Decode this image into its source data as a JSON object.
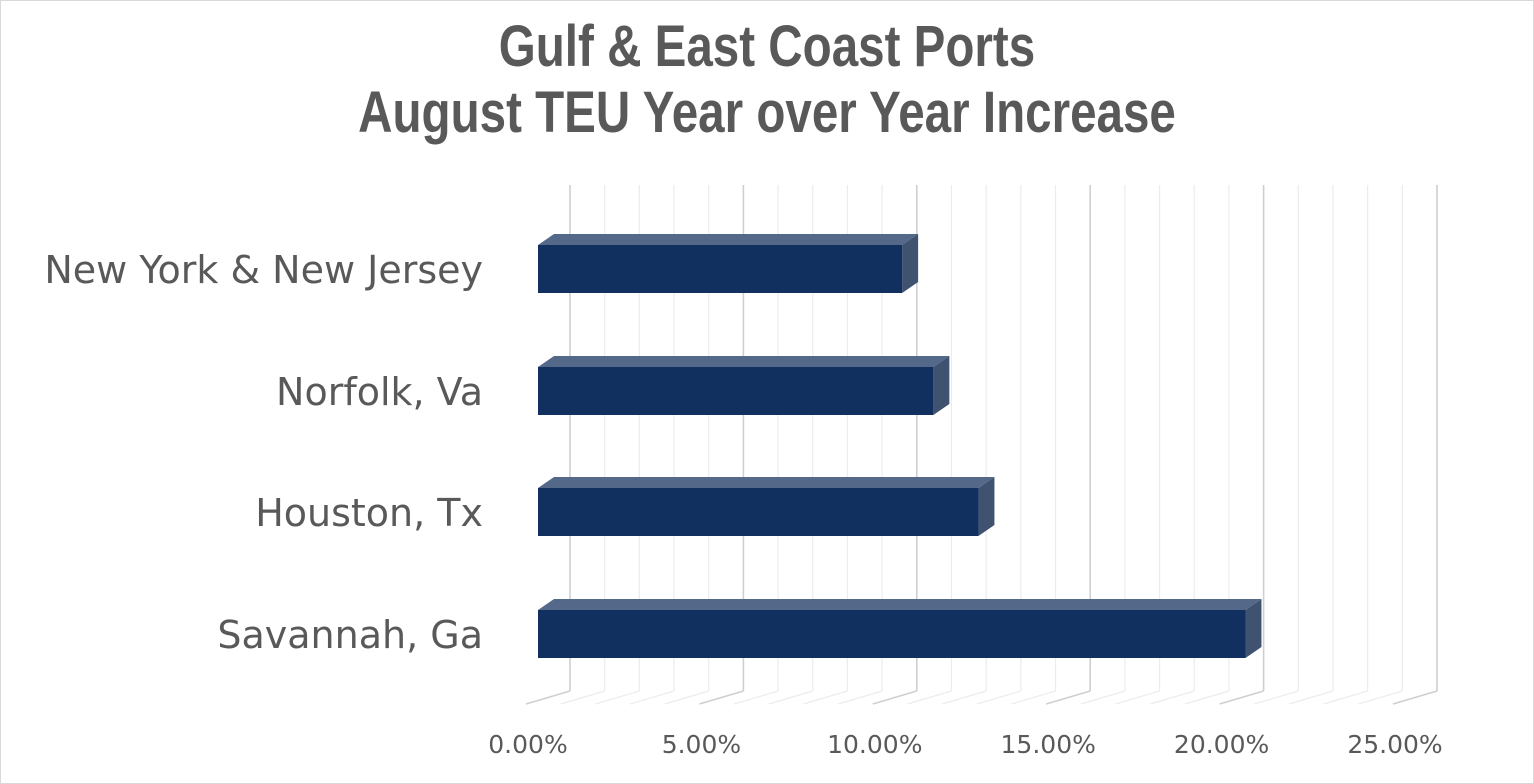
{
  "chart_data": {
    "type": "bar",
    "orientation": "horizontal",
    "style": "3d",
    "title": [
      "Gulf & East Coast Ports",
      "August TEU Year over Year Increase"
    ],
    "categories": [
      "New York & New Jersey",
      "Norfolk, Va",
      "Houston, Tx",
      "Savannah, Ga"
    ],
    "values": [
      10.5,
      11.4,
      12.7,
      20.4
    ],
    "xlim": [
      0,
      25
    ],
    "x_ticks": [
      "0.00%",
      "5.00%",
      "10.00%",
      "15.00%",
      "20.00%",
      "25.00%"
    ],
    "grid": true,
    "legend": "none",
    "colors": {
      "bar_front": "#12305f",
      "bar_top": "#54698a",
      "bar_side": "#3f5270",
      "grid": "#d9d9d9",
      "text": "#595959"
    }
  }
}
